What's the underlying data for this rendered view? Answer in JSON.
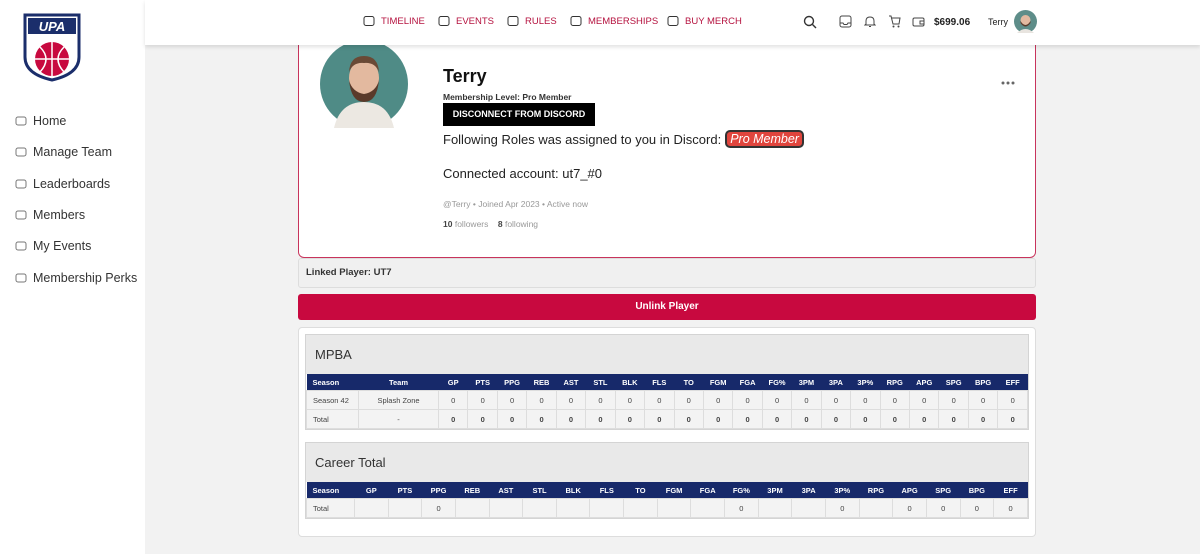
{
  "header": {
    "nav": [
      "TIMELINE",
      "EVENTS",
      "RULES",
      "MEMBERSHIPS",
      "BUY MERCH"
    ],
    "balance": "$699.06",
    "username": "Terry"
  },
  "sidebar": {
    "logo": "UPA",
    "menu": [
      "Home",
      "Manage Team",
      "Leaderboards",
      "Members",
      "My Events",
      "Membership Perks"
    ]
  },
  "profile": {
    "name": "Terry",
    "membership_level": "Membership Level: Pro Member",
    "discord_button": "DISCONNECT FROM DISCORD",
    "roles_text": "Following Roles was assigned to you in Discord:",
    "role_badge": "Pro Member",
    "connected_account": "Connected account: ut7_#0",
    "meta": "@Terry • Joined Apr 2023 • Active now",
    "followers_count": "10",
    "followers_label": "followers",
    "following_count": "8",
    "following_label": "following"
  },
  "linked_player": "Linked Player: UT7",
  "unlink_button": "Unlink Player",
  "stats": [
    {
      "title": "MPBA",
      "columns": [
        "Season",
        "Team",
        "GP",
        "PTS",
        "PPG",
        "REB",
        "AST",
        "STL",
        "BLK",
        "FLS",
        "TO",
        "FGM",
        "FGA",
        "FG%",
        "3PM",
        "3PA",
        "3P%",
        "RPG",
        "APG",
        "SPG",
        "BPG",
        "EFF"
      ],
      "rows": [
        [
          "Season 42",
          "Splash Zone",
          "0",
          "0",
          "0",
          "0",
          "0",
          "0",
          "0",
          "0",
          "0",
          "0",
          "0",
          "0",
          "0",
          "0",
          "0",
          "0",
          "0",
          "0",
          "0",
          "0"
        ],
        [
          "Total",
          "-",
          "0",
          "0",
          "0",
          "0",
          "0",
          "0",
          "0",
          "0",
          "0",
          "0",
          "0",
          "0",
          "0",
          "0",
          "0",
          "0",
          "0",
          "0",
          "0",
          "0"
        ]
      ]
    },
    {
      "title": "Career Total",
      "columns": [
        "Season",
        "GP",
        "PTS",
        "PPG",
        "REB",
        "AST",
        "STL",
        "BLK",
        "FLS",
        "TO",
        "FGM",
        "FGA",
        "FG%",
        "3PM",
        "3PA",
        "3P%",
        "RPG",
        "APG",
        "SPG",
        "BPG",
        "EFF"
      ],
      "rows": [
        [
          "Total",
          null,
          null,
          "0",
          null,
          null,
          null,
          null,
          null,
          null,
          null,
          null,
          "0",
          null,
          null,
          "0",
          null,
          "0",
          "0",
          "0",
          "0"
        ]
      ]
    }
  ]
}
